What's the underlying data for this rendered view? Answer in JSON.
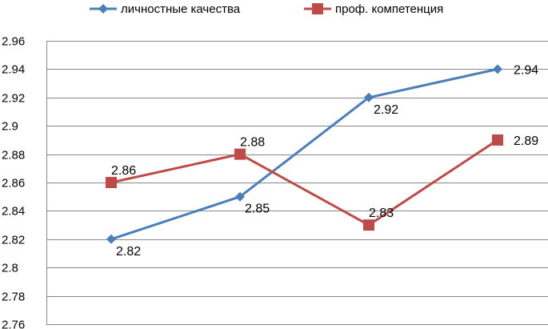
{
  "chart_data": {
    "type": "line",
    "x": [
      "1",
      "2",
      "3",
      "4"
    ],
    "ylim": [
      2.76,
      2.96
    ],
    "yticks": [
      2.76,
      2.78,
      2.8,
      2.82,
      2.84,
      2.86,
      2.88,
      2.9,
      2.92,
      2.94,
      2.96
    ],
    "ytick_labels": [
      "2.76",
      "2.78",
      "2.8",
      "2.82",
      "2.84",
      "2.86",
      "2.88",
      "2.9",
      "2.92",
      "2.94",
      "2.96"
    ],
    "grid": true,
    "legend_position": "top",
    "series": [
      {
        "name": "личностные качества",
        "values": [
          2.82,
          2.85,
          2.92,
          2.94
        ],
        "labels": [
          "2.82",
          "2.85",
          "2.92",
          "2.94"
        ],
        "color": "#4a7ebb",
        "marker": "diamond",
        "label_placement": [
          "below-right",
          "below-right",
          "below-right",
          "right"
        ]
      },
      {
        "name": "проф. компетенция",
        "values": [
          2.86,
          2.88,
          2.83,
          2.89
        ],
        "labels": [
          "2.86",
          "2.88",
          "2.83",
          "2.89"
        ],
        "color": "#be4b48",
        "marker": "square",
        "label_placement": [
          "above-right",
          "above-right",
          "above-right",
          "right"
        ]
      }
    ]
  }
}
